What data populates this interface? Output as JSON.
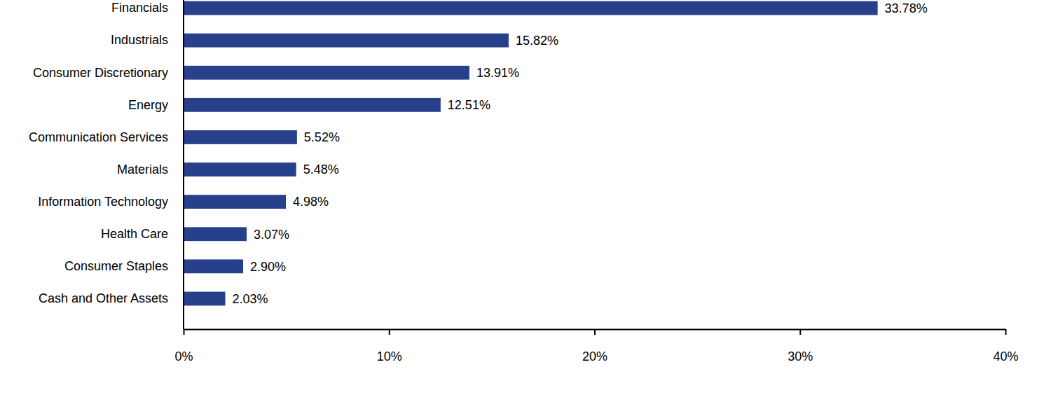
{
  "chart_data": {
    "type": "bar",
    "orientation": "horizontal",
    "categories": [
      "Financials",
      "Industrials",
      "Consumer Discretionary",
      "Energy",
      "Communication Services",
      "Materials",
      "Information Technology",
      "Health Care",
      "Consumer Staples",
      "Cash and Other Assets"
    ],
    "values": [
      33.78,
      15.82,
      13.91,
      12.51,
      5.52,
      5.48,
      4.98,
      3.07,
      2.9,
      2.03
    ],
    "value_labels": [
      "33.78%",
      "15.82%",
      "13.91%",
      "12.51%",
      "5.52%",
      "5.48%",
      "4.98%",
      "3.07%",
      "2.90%",
      "2.03%"
    ],
    "color": "#27408b",
    "xlim": [
      0,
      40
    ],
    "xticks": [
      {
        "value": 0,
        "label": "0%"
      },
      {
        "value": 10,
        "label": "10%"
      },
      {
        "value": 20,
        "label": "20%"
      },
      {
        "value": 30,
        "label": "30%"
      },
      {
        "value": 40,
        "label": "40%"
      }
    ],
    "grid": false,
    "data_labels": true
  }
}
